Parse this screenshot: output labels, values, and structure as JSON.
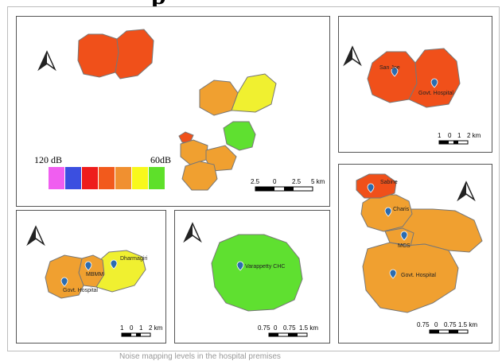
{
  "heading_fragment": "p",
  "caption": "Noise mapping levels in the hospital premises",
  "legend": {
    "high_label": "120 dB",
    "low_label": "60dB",
    "colors": [
      "#f05ef0",
      "#3b4fe0",
      "#ee1c1c",
      "#f25a1c",
      "#f09030",
      "#f8f81c",
      "#5ee02a"
    ]
  },
  "panels": {
    "overview": {
      "scalebar_labels": [
        "2.5",
        "0",
        "2.5",
        "5 km"
      ]
    },
    "san_joe": {
      "sites": [
        "San Joe",
        "Govt. Hospital"
      ],
      "scalebar_labels": [
        "1",
        "0",
        "1",
        "2 km"
      ]
    },
    "dharmagiri": {
      "sites": [
        "MBMM",
        "Dharmagiri",
        "Govt. Hospital"
      ],
      "scalebar_labels": [
        "1",
        "0",
        "1",
        "2 km"
      ]
    },
    "varappetty": {
      "sites": [
        "Varappetty CHC"
      ],
      "scalebar_labels": [
        "0.75",
        "0",
        "0.75",
        "1.5 km"
      ]
    },
    "sabine": {
      "sites": [
        "Sabine",
        "Charis",
        "MCS",
        "Govt. Hospital"
      ],
      "scalebar_labels": [
        "0.75",
        "0",
        "0.75",
        "1.5 km"
      ]
    }
  },
  "icons": {
    "north_arrow": "north-arrow-icon",
    "marker": "map-pin-icon"
  },
  "colors": {
    "orange_zone": "#f0a030",
    "red_zone": "#f0501a",
    "yellow_zone": "#f0f030",
    "green_zone": "#5fe030",
    "border": "#555555"
  }
}
